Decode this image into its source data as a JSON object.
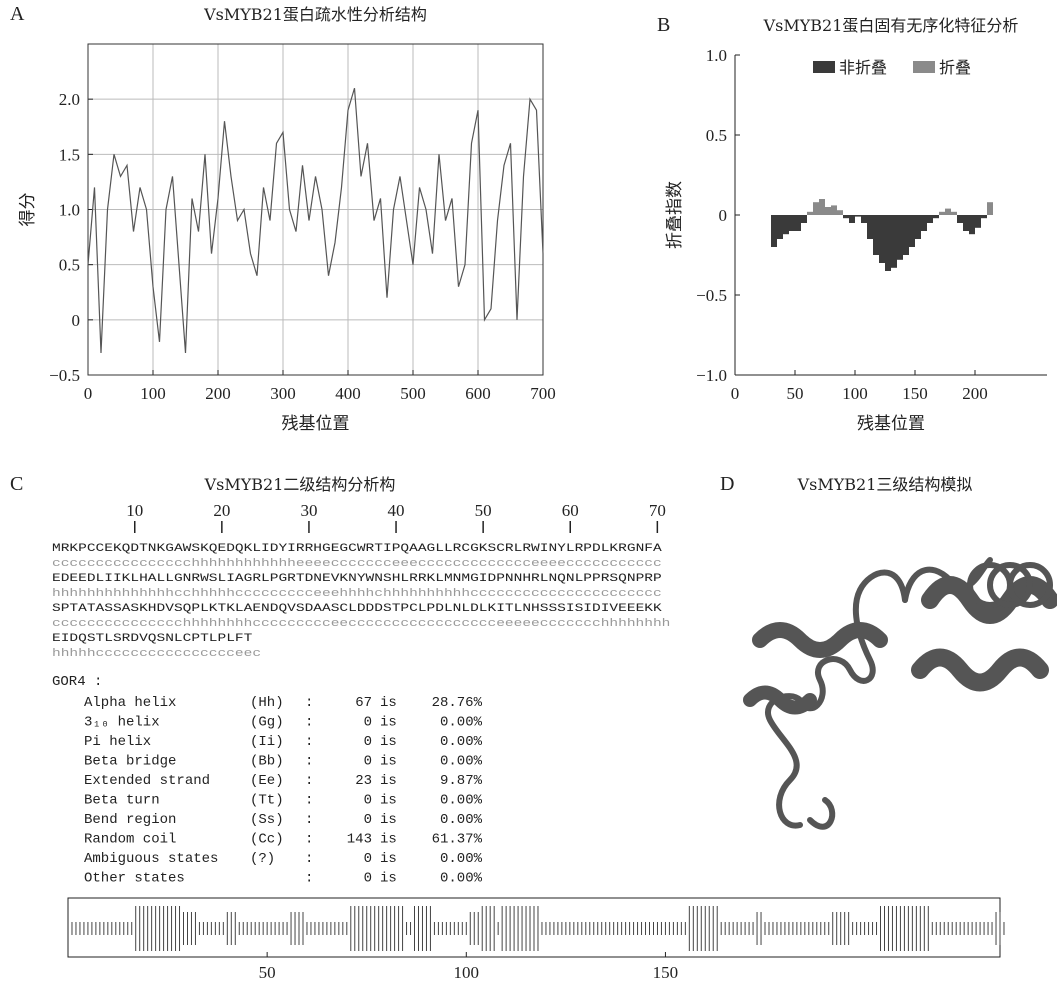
{
  "chart_data": [
    {
      "type": "line",
      "panel": "A",
      "title": "VsMYB21蛋白疏水性分析结构",
      "x_label": "残基位置",
      "y_label": "得分",
      "x": [
        0,
        10,
        20,
        30,
        40,
        50,
        60,
        70,
        80,
        90,
        100,
        110,
        120,
        130,
        140,
        150,
        160,
        170,
        180,
        190,
        200,
        210,
        220,
        230,
        240,
        250,
        260,
        270,
        280,
        290,
        300,
        310,
        320,
        330,
        340,
        350,
        360,
        370,
        380,
        390,
        400,
        410,
        420,
        430,
        440,
        450,
        460,
        470,
        480,
        490,
        500,
        510,
        520,
        530,
        540,
        550,
        560,
        570,
        580,
        590,
        600,
        610,
        620,
        630,
        640,
        650,
        660,
        670,
        680,
        690,
        700
      ],
      "series": [
        {
          "color": "#555555",
          "values": [
            0.5,
            1.2,
            -0.3,
            1.0,
            1.5,
            1.3,
            1.4,
            0.8,
            1.2,
            1.0,
            0.3,
            -0.2,
            1.0,
            1.3,
            0.5,
            -0.3,
            1.1,
            0.8,
            1.5,
            0.6,
            1.1,
            1.8,
            1.3,
            0.9,
            1.0,
            0.6,
            0.4,
            1.2,
            0.9,
            1.6,
            1.7,
            1.0,
            0.8,
            1.4,
            0.9,
            1.3,
            1.0,
            0.4,
            0.7,
            1.2,
            1.9,
            2.1,
            1.3,
            1.6,
            0.9,
            1.1,
            0.2,
            1.0,
            1.3,
            0.9,
            0.5,
            1.2,
            1.0,
            0.6,
            1.5,
            0.9,
            1.1,
            0.3,
            0.5,
            1.6,
            1.9,
            0.0,
            0.1,
            0.9,
            1.4,
            1.6,
            0.0,
            1.3,
            2.0,
            1.9,
            0.6
          ]
        }
      ],
      "xlim": [
        0,
        700
      ],
      "xticks": [
        0,
        100,
        200,
        300,
        400,
        500,
        600,
        700
      ],
      "ylim": [
        -0.5,
        2.5
      ],
      "yticks": [
        {
          "value": -0.5,
          "label": "−0.5"
        },
        0,
        0.5,
        {
          "value": 1,
          "label": "1.0"
        },
        1.5,
        {
          "value": 2,
          "label": "2.0"
        }
      ],
      "grid": true
    },
    {
      "type": "bar",
      "panel": "B",
      "title": "VsMYB21蛋白固有无序化特征分析",
      "x_label": "残基位置",
      "y_label": "折叠指数",
      "x": [
        30,
        35,
        40,
        45,
        50,
        55,
        60,
        65,
        70,
        75,
        80,
        85,
        90,
        95,
        100,
        105,
        110,
        115,
        120,
        125,
        130,
        135,
        140,
        145,
        150,
        155,
        160,
        165,
        170,
        175,
        180,
        185,
        190,
        195,
        200,
        205,
        210
      ],
      "series": [
        {
          "name": "非折叠",
          "color": "#3a3a3a",
          "values": [
            -0.2,
            -0.15,
            -0.12,
            -0.1,
            -0.1,
            -0.05,
            null,
            null,
            null,
            null,
            null,
            null,
            -0.02,
            -0.05,
            -0.01,
            -0.05,
            -0.15,
            -0.25,
            -0.3,
            -0.35,
            -0.33,
            -0.28,
            -0.25,
            -0.2,
            -0.15,
            -0.1,
            -0.05,
            -0.02,
            null,
            null,
            null,
            -0.05,
            -0.1,
            -0.12,
            -0.08,
            -0.02,
            null
          ]
        },
        {
          "name": "折叠",
          "color": "#8a8a8a",
          "values": [
            null,
            null,
            null,
            null,
            null,
            null,
            0.02,
            0.08,
            0.1,
            0.05,
            0.06,
            0.03,
            null,
            null,
            null,
            null,
            null,
            null,
            null,
            null,
            null,
            null,
            null,
            null,
            null,
            null,
            null,
            null,
            0.02,
            0.04,
            0.02,
            null,
            null,
            null,
            null,
            null,
            0.08
          ]
        }
      ],
      "xlim": [
        0,
        260
      ],
      "xticks": [
        0,
        50,
        100,
        150,
        200
      ],
      "ylim": [
        -1,
        1
      ],
      "yticks": [
        {
          "value": -1,
          "label": "−1.0"
        },
        {
          "value": -0.5,
          "label": "−0.5"
        },
        0,
        0.5,
        {
          "value": 1,
          "label": "1.0"
        }
      ],
      "grid": false,
      "legend": "top"
    }
  ],
  "secondary": {
    "panel": "C",
    "title": "VsMYB21二级结构分析构",
    "ruler": [
      10,
      20,
      30,
      40,
      50,
      60,
      70
    ],
    "lines": [
      [
        "MRKPCCEKQDTNKGAWSKQEDQKLIDYIRRHGEGCWRTIPQAAGLLRCGKSCRLRWINYLRPDLKRGNFA",
        "cccccccccccccccchhhhhhhhhhhheeeeccccccceeeccccccccccccceeeeccccccccccc"
      ],
      [
        "EDEEDLIIKLHALLGNRWSLIAGRLPGRTDNEVKNYWNSHLRRKLMNMGIDPNNHRLNQNLPPRSQNPRP",
        "hhhhhhhhhhhhhhcchhhhhccccccccceeehhhhchhhhhhhhhhcccccccccccccccccccccc"
      ],
      [
        "SPTATASSASKHDVSQPLKTKLAENDQVSDAASCLDDDSTPCLPDLNLDLKITLNHSSSISIDIVEEEKK",
        "ccccccccccccccchhhhhhhhccccccccceeccccccccccccccccceeeeeccccccchhhhhhhh"
      ],
      [
        "EIDQSTLSRDVQSNLCPTLPLFT",
        "hhhhhcccccccccccccccceec"
      ]
    ],
    "method": "GOR4 :",
    "rows": [
      [
        "Alpha helix",
        "(Hh)",
        ":",
        "67",
        "is",
        "28.76%"
      ],
      [
        "3₁₀ helix",
        "(Gg)",
        ":",
        "0",
        "is",
        "0.00%"
      ],
      [
        "Pi helix",
        "(Ii)",
        ":",
        "0",
        "is",
        "0.00%"
      ],
      [
        "Beta bridge",
        "(Bb)",
        ":",
        "0",
        "is",
        "0.00%"
      ],
      [
        "Extended strand",
        "(Ee)",
        ":",
        "23",
        "is",
        "9.87%"
      ],
      [
        "Beta turn",
        "(Tt)",
        ":",
        "0",
        "is",
        "0.00%"
      ],
      [
        "Bend region",
        "(Ss)",
        ":",
        "0",
        "is",
        "0.00%"
      ],
      [
        "Random coil",
        "(Cc)",
        ":",
        "143",
        "is",
        "61.37%"
      ],
      [
        "Ambiguous states",
        "(?)",
        ":",
        "0",
        "is",
        "0.00%"
      ],
      [
        "Other states",
        "",
        ":",
        "0",
        "is",
        "0.00%"
      ]
    ],
    "strip_xlim": [
      0,
      234
    ],
    "strip_xticks": [
      50,
      100,
      150
    ]
  },
  "tertiary": {
    "panel": "D",
    "title": "VsMYB21三级结构模拟"
  }
}
